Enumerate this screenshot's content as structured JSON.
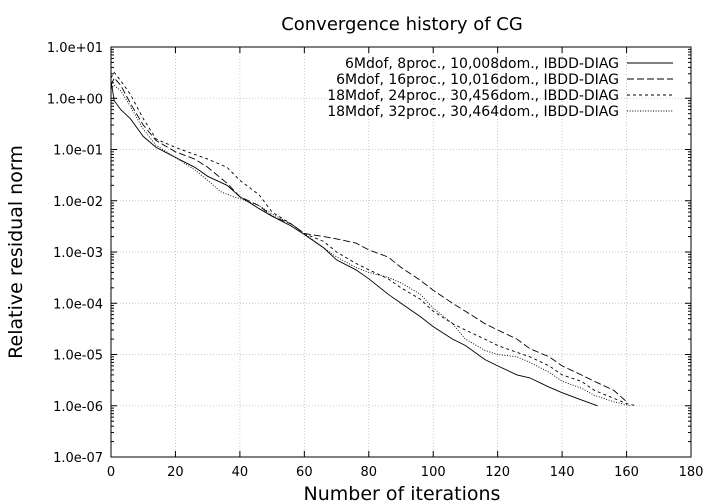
{
  "chart_data": {
    "type": "line",
    "title": "Convergence history of CG",
    "xlabel": "Number of iterations",
    "ylabel": "Relative residual norm",
    "xlim": [
      0,
      180
    ],
    "ylim": [
      1e-07,
      10
    ],
    "yscale": "log",
    "grid": true,
    "legend_position": "top-right",
    "x_ticks": [
      0,
      20,
      40,
      60,
      80,
      100,
      120,
      140,
      160,
      180
    ],
    "x_tick_labels": [
      "0",
      "20",
      "40",
      "60",
      "80",
      "100",
      "120",
      "140",
      "160",
      "180"
    ],
    "y_ticks": [
      10,
      1,
      0.1,
      0.01,
      0.001,
      0.0001,
      1e-05,
      1e-06,
      1e-07
    ],
    "y_tick_labels": [
      "1.0e+01",
      "1.0e+00",
      "1.0e-01",
      "1.0e-02",
      "1.0e-03",
      "1.0e-04",
      "1.0e-05",
      "1.0e-06",
      "1.0e-07"
    ],
    "series": [
      {
        "name": "6Mdof, 8proc., 10,008dom., IBDD-DIAG",
        "style": "solid",
        "x": [
          0,
          1,
          3,
          6,
          10,
          14,
          20,
          26,
          30,
          36,
          40,
          46,
          50,
          56,
          60,
          66,
          70,
          76,
          80,
          86,
          90,
          96,
          100,
          106,
          110,
          116,
          120,
          126,
          130,
          136,
          140,
          146,
          151
        ],
        "y": [
          2.2,
          0.9,
          0.6,
          0.4,
          0.18,
          0.11,
          0.07,
          0.045,
          0.03,
          0.02,
          0.012,
          0.007,
          0.005,
          0.0032,
          0.0022,
          0.0012,
          0.0007,
          0.00045,
          0.0003,
          0.00015,
          0.0001,
          5.5e-05,
          3.5e-05,
          2e-05,
          1.5e-05,
          8e-06,
          6e-06,
          4e-06,
          3.5e-06,
          2.3e-06,
          1.8e-06,
          1.3e-06,
          1e-06
        ]
      },
      {
        "name": "6Mdof, 16proc., 10,016dom., IBDD-DIAG",
        "style": "dashed",
        "x": [
          0,
          1,
          3,
          6,
          10,
          14,
          20,
          26,
          30,
          36,
          40,
          46,
          50,
          56,
          60,
          66,
          70,
          76,
          80,
          86,
          90,
          96,
          100,
          106,
          110,
          116,
          120,
          126,
          130,
          136,
          140,
          146,
          150,
          156,
          160
        ],
        "y": [
          1.8,
          2.5,
          1.8,
          0.8,
          0.3,
          0.15,
          0.09,
          0.065,
          0.045,
          0.022,
          0.012,
          0.008,
          0.005,
          0.0035,
          0.0023,
          0.002,
          0.0018,
          0.0015,
          0.0011,
          0.0008,
          0.0005,
          0.00028,
          0.00018,
          0.0001,
          7e-05,
          4e-05,
          3e-05,
          2e-05,
          1.3e-05,
          9e-06,
          6e-06,
          4e-06,
          3e-06,
          2e-06,
          1.2e-06
        ]
      },
      {
        "name": "18Mdof, 24proc., 30,456dom., IBDD-DIAG",
        "style": "short-dashed",
        "x": [
          0,
          1,
          3,
          6,
          10,
          14,
          20,
          26,
          30,
          36,
          40,
          46,
          50,
          56,
          60,
          66,
          70,
          76,
          80,
          86,
          90,
          96,
          100,
          106,
          110,
          116,
          120,
          126,
          130,
          136,
          140,
          146,
          150,
          156,
          160,
          163
        ],
        "y": [
          2.5,
          3.2,
          2.2,
          1.2,
          0.4,
          0.16,
          0.11,
          0.08,
          0.065,
          0.045,
          0.025,
          0.013,
          0.006,
          0.0035,
          0.0023,
          0.0016,
          0.001,
          0.0006,
          0.00045,
          0.0003,
          0.0002,
          0.00012,
          7e-05,
          4e-05,
          3e-05,
          2e-05,
          1.5e-05,
          1.1e-05,
          9e-06,
          6e-06,
          4e-06,
          3e-06,
          2e-06,
          1.4e-06,
          1.1e-06,
          1e-06
        ]
      },
      {
        "name": "18Mdof, 32proc., 30,464dom., IBDD-DIAG",
        "style": "dotted",
        "x": [
          0,
          1,
          3,
          6,
          10,
          14,
          20,
          26,
          30,
          34,
          38,
          40,
          46,
          50,
          56,
          60,
          66,
          70,
          76,
          80,
          86,
          90,
          96,
          100,
          106,
          110,
          116,
          120,
          126,
          130,
          136,
          140,
          146,
          150,
          156,
          161
        ],
        "y": [
          1.5,
          1.8,
          1.4,
          0.7,
          0.25,
          0.12,
          0.07,
          0.04,
          0.025,
          0.015,
          0.012,
          0.011,
          0.008,
          0.0055,
          0.0035,
          0.0023,
          0.0012,
          0.0008,
          0.0005,
          0.0004,
          0.00032,
          0.00025,
          0.00015,
          8e-05,
          4e-05,
          2e-05,
          1.2e-05,
          1e-05,
          9e-06,
          7e-06,
          4.5e-06,
          3e-06,
          2.2e-06,
          1.6e-06,
          1.2e-06,
          1e-06
        ]
      }
    ]
  }
}
